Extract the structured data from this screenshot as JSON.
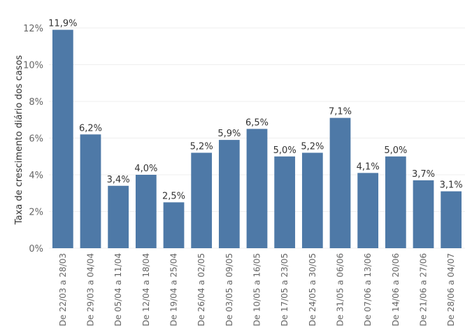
{
  "chart_data": {
    "type": "bar",
    "ylabel": "Taxa de crescimento diário dos casos",
    "ylim": [
      0,
      12
    ],
    "yticks": [
      0,
      2,
      4,
      6,
      8,
      10,
      12
    ],
    "ytick_labels": [
      "0%",
      "2%",
      "4%",
      "6%",
      "8%",
      "10%",
      "12%"
    ],
    "grid": true,
    "bar_color": "#4e79a7",
    "categories": [
      "De 22/03 a 28/03",
      "De 29/03 a 04/04",
      "De 05/04 a 11/04",
      "De 12/04 a 18/04",
      "De 19/04 a 25/04",
      "De 26/04 a 02/05",
      "De 03/05 a 09/05",
      "De 10/05 a 16/05",
      "De 17/05 a 23/05",
      "De 24/05 a 30/05",
      "De 31/05 a 06/06",
      "De 07/06 a 13/06",
      "De 14/06 a 20/06",
      "De 21/06 a 27/06",
      "De 28/06 a 04/07"
    ],
    "values": [
      11.9,
      6.2,
      3.4,
      4.0,
      2.5,
      5.2,
      5.9,
      6.5,
      5.0,
      5.2,
      7.1,
      4.1,
      5.0,
      3.7,
      3.1
    ],
    "data_labels": [
      "11,9%",
      "6,2%",
      "3,4%",
      "4,0%",
      "2,5%",
      "5,2%",
      "5,9%",
      "6,5%",
      "5,0%",
      "5,2%",
      "7,1%",
      "4,1%",
      "5,0%",
      "3,7%",
      "3,1%"
    ]
  }
}
